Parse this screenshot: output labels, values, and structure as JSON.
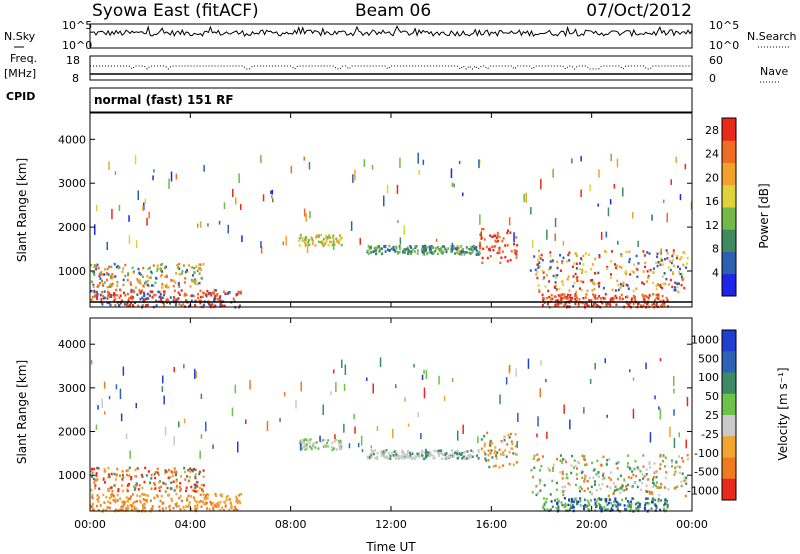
{
  "header": {
    "station": "Syowa East (fitACF)",
    "beam": "Beam 06",
    "date": "07/Oct/2012"
  },
  "noise_panel": {
    "left_label": "N.Sky",
    "left_ticks": [
      "10^5",
      "10^0"
    ],
    "right_label": "N.Search",
    "right_ticks": [
      "10^5",
      "10^0"
    ]
  },
  "freq_panel": {
    "label_line1": "Freq.",
    "label_line2": "[MHz]",
    "left_ticks": [
      "18",
      "8"
    ],
    "right_label": "Nave",
    "right_ticks": [
      "60",
      "0"
    ]
  },
  "cpid": {
    "label": "CPID",
    "text": "normal (fast) 151 RF"
  },
  "colors": {
    "power_scale": [
      "#1f24e6",
      "#2d5fb0",
      "#3f8a5e",
      "#72b84a",
      "#e0d23a",
      "#f0a22a",
      "#ef6d22",
      "#e8291c"
    ],
    "velocity_scale": [
      "#1f3fd0",
      "#2d62b4",
      "#3c8a66",
      "#6cc24a",
      "#c9c9c9",
      "#f1a42e",
      "#ee7a22",
      "#e8291c"
    ]
  },
  "chart_data": [
    {
      "type": "heatmap",
      "title": "",
      "xlabel": "",
      "ylabel": "Slant Range [km]",
      "xticks": [
        "00:00",
        "04:00",
        "08:00",
        "12:00",
        "16:00",
        "20:00",
        "00:00"
      ],
      "yticks": [
        "1000",
        "2000",
        "3000",
        "4000"
      ],
      "ylim": [
        180,
        4600
      ],
      "xlim_hours": [
        0,
        24
      ],
      "colorbar": {
        "label": "Power [dB]",
        "ticks": [
          "4",
          "8",
          "12",
          "16",
          "20",
          "24",
          "28"
        ],
        "range": [
          0,
          30
        ]
      }
    },
    {
      "type": "heatmap",
      "title": "",
      "xlabel": "Time UT",
      "ylabel": "Slant Range [km]",
      "xticks": [
        "00:00",
        "04:00",
        "08:00",
        "12:00",
        "16:00",
        "20:00",
        "00:00"
      ],
      "yticks": [
        "1000",
        "2000",
        "3000",
        "4000"
      ],
      "ylim": [
        180,
        4600
      ],
      "xlim_hours": [
        0,
        24
      ],
      "colorbar": {
        "label": "Velocity [m s⁻¹]",
        "ticks": [
          "1000",
          "500",
          "100",
          "50",
          "25",
          "-25",
          "-100",
          "-500",
          "-1000"
        ]
      }
    }
  ]
}
